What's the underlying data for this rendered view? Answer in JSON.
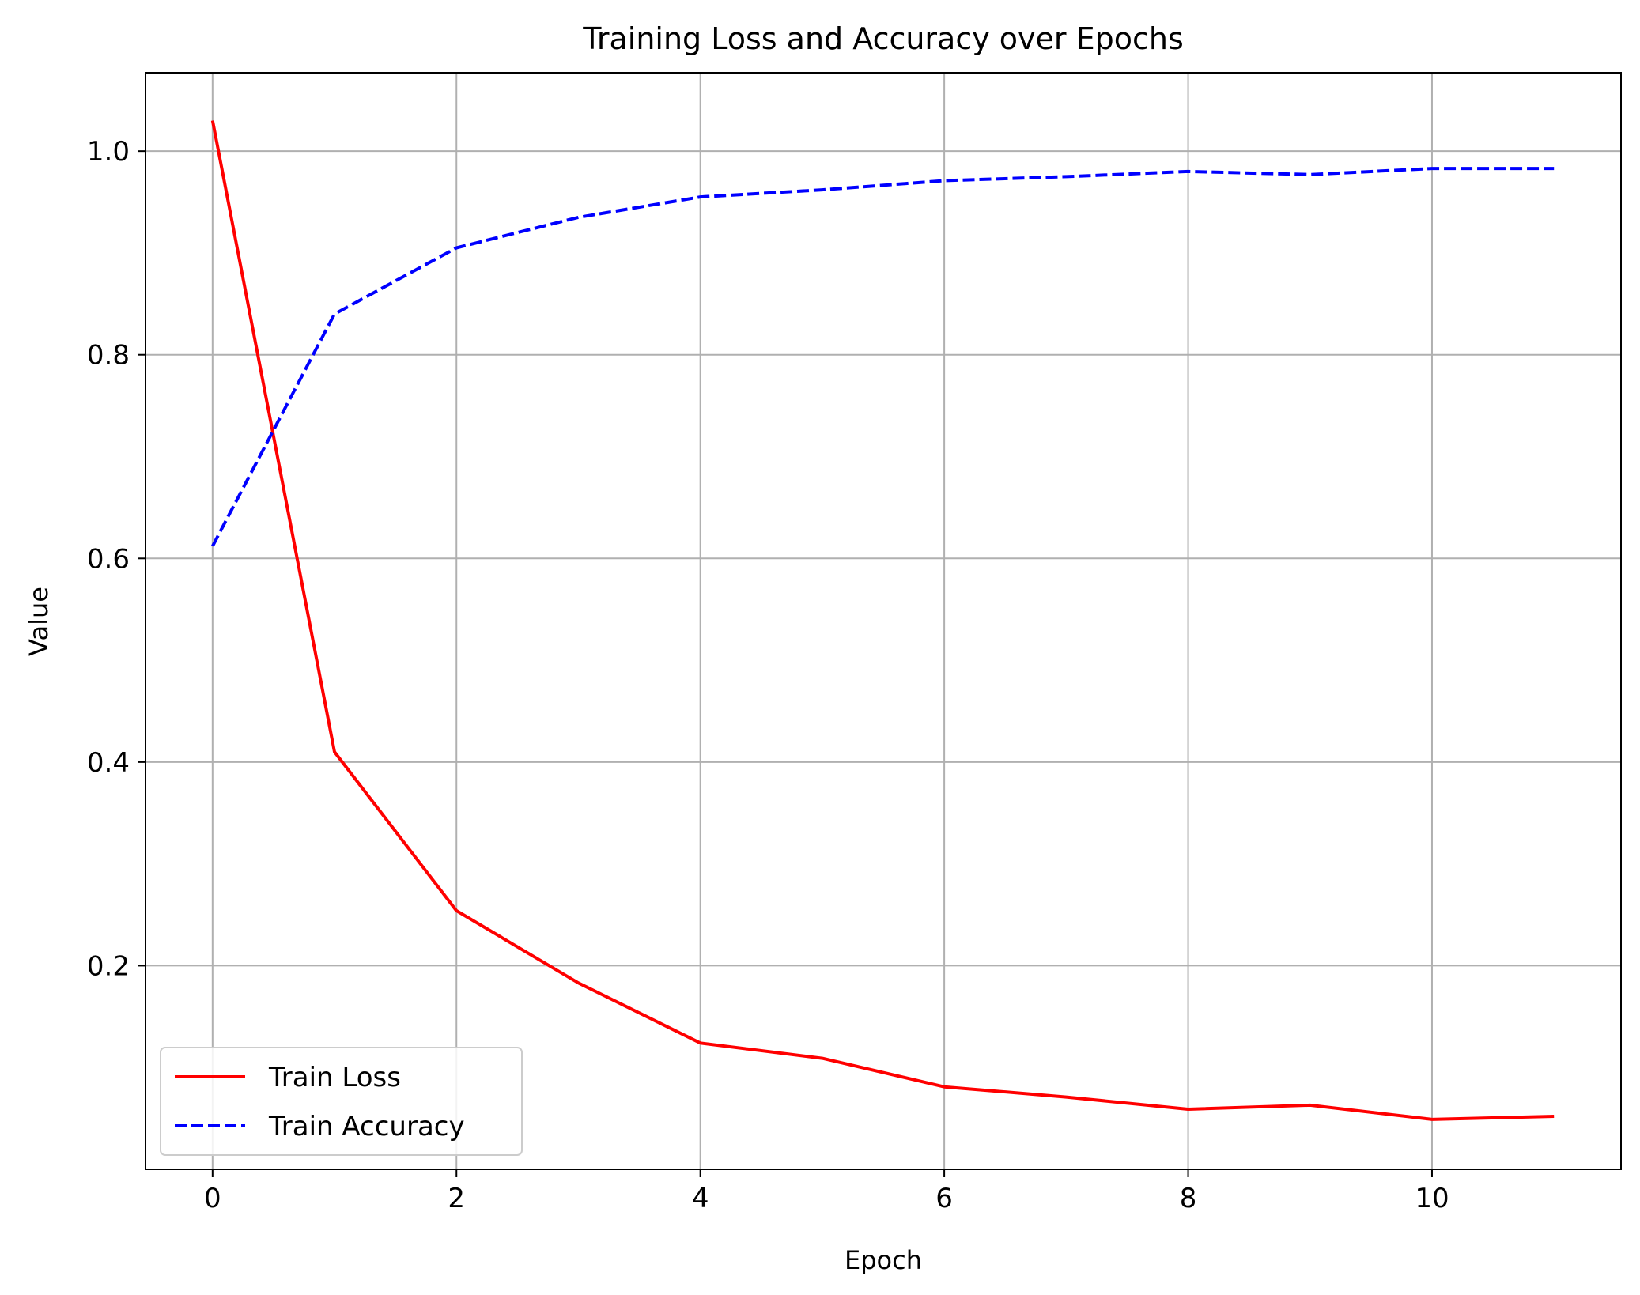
{
  "chart_data": {
    "type": "line",
    "title": "Training Loss and Accuracy over Epochs",
    "xlabel": "Epoch",
    "ylabel": "Value",
    "xlim": [
      -0.55,
      11.55
    ],
    "ylim": [
      0.0,
      1.077
    ],
    "x_ticks": [
      0,
      2,
      4,
      6,
      8,
      10
    ],
    "x_tick_labels": [
      "0",
      "2",
      "4",
      "6",
      "8",
      "10"
    ],
    "y_ticks": [
      0.2,
      0.4,
      0.6,
      0.8,
      1.0
    ],
    "y_tick_labels": [
      "0.2",
      "0.4",
      "0.6",
      "0.8",
      "1.0"
    ],
    "grid": true,
    "legend_position": "lower-left",
    "x": [
      0,
      1,
      2,
      3,
      4,
      5,
      6,
      7,
      8,
      9,
      10,
      11
    ],
    "series": [
      {
        "name": "Train Loss",
        "color": "#ff0000",
        "line_style": "solid",
        "values": [
          1.03,
          0.41,
          0.254,
          0.183,
          0.124,
          0.109,
          0.081,
          0.071,
          0.059,
          0.063,
          0.049,
          0.052
        ]
      },
      {
        "name": "Train Accuracy",
        "color": "#0000ff",
        "line_style": "dashed",
        "values": [
          0.612,
          0.84,
          0.905,
          0.935,
          0.955,
          0.962,
          0.971,
          0.975,
          0.98,
          0.977,
          0.983,
          0.983
        ]
      }
    ]
  }
}
